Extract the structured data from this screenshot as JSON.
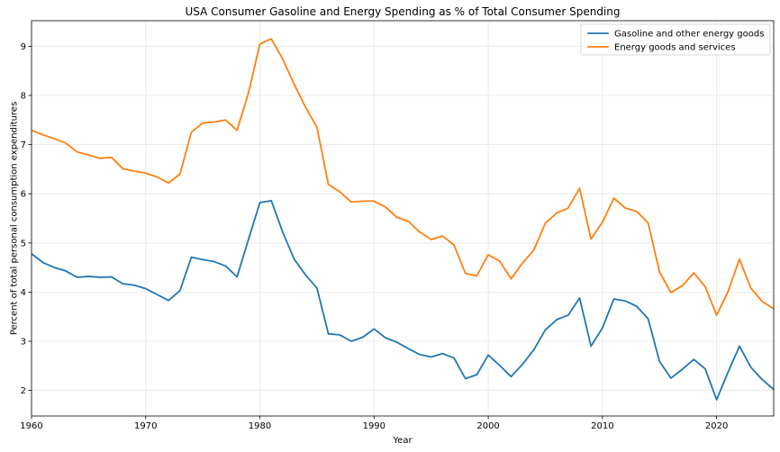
{
  "chart_data": {
    "type": "line",
    "title": "USA Consumer Gasoline and Energy Spending as % of Total Consumer Spending",
    "xlabel": "Year",
    "ylabel": "Percent of total personal consumption expenditures",
    "xlim": [
      1960,
      2025
    ],
    "ylim": [
      1.48,
      9.52
    ],
    "grid": true,
    "legend_position": "top-right",
    "x_ticks": [
      1960,
      1970,
      1980,
      1990,
      2000,
      2010,
      2020
    ],
    "x_tick_labels": [
      "1960",
      "1970",
      "1980",
      "1990",
      "2000",
      "2010",
      "2020"
    ],
    "y_ticks": [
      2,
      3,
      4,
      5,
      6,
      7,
      8,
      9
    ],
    "y_tick_labels": [
      "2",
      "3",
      "4",
      "5",
      "6",
      "7",
      "8",
      "9"
    ],
    "x": [
      1960,
      1961,
      1962,
      1963,
      1964,
      1965,
      1966,
      1967,
      1968,
      1969,
      1970,
      1971,
      1972,
      1973,
      1974,
      1975,
      1976,
      1977,
      1978,
      1979,
      1980,
      1981,
      1982,
      1983,
      1984,
      1985,
      1986,
      1987,
      1988,
      1989,
      1990,
      1991,
      1992,
      1993,
      1994,
      1995,
      1996,
      1997,
      1998,
      1999,
      2000,
      2001,
      2002,
      2003,
      2004,
      2005,
      2006,
      2007,
      2008,
      2009,
      2010,
      2011,
      2012,
      2013,
      2014,
      2015,
      2016,
      2017,
      2018,
      2019,
      2020,
      2021,
      2022,
      2023,
      2024,
      2025
    ],
    "series": [
      {
        "name": "Gasoline and other energy goods",
        "color": "#1f77b4",
        "values": [
          4.78,
          4.6,
          4.5,
          4.43,
          4.3,
          4.32,
          4.3,
          4.31,
          4.17,
          4.14,
          4.07,
          3.95,
          3.83,
          4.03,
          4.71,
          4.66,
          4.62,
          4.53,
          4.31,
          5.07,
          5.82,
          5.86,
          5.22,
          4.67,
          4.35,
          4.08,
          3.15,
          3.13,
          3.0,
          3.08,
          3.25,
          3.07,
          2.98,
          2.85,
          2.73,
          2.68,
          2.75,
          2.66,
          2.24,
          2.32,
          2.72,
          2.51,
          2.28,
          2.53,
          2.83,
          3.23,
          3.44,
          3.53,
          3.88,
          2.9,
          3.27,
          3.86,
          3.82,
          3.71,
          3.46,
          2.59,
          2.25,
          2.43,
          2.63,
          2.44,
          1.81,
          2.37,
          2.9,
          2.47,
          2.22,
          2.02
        ]
      },
      {
        "name": "Energy goods and services",
        "color": "#ff7f0e",
        "values": [
          7.29,
          7.2,
          7.12,
          7.03,
          6.85,
          6.79,
          6.72,
          6.74,
          6.51,
          6.46,
          6.42,
          6.34,
          6.22,
          6.4,
          7.25,
          7.44,
          7.46,
          7.5,
          7.29,
          8.05,
          9.05,
          9.15,
          8.74,
          8.23,
          7.76,
          7.35,
          6.19,
          6.04,
          5.83,
          5.85,
          5.85,
          5.73,
          5.52,
          5.44,
          5.22,
          5.07,
          5.14,
          4.96,
          4.38,
          4.33,
          4.76,
          4.63,
          4.27,
          4.59,
          4.86,
          5.4,
          5.61,
          5.71,
          6.11,
          5.08,
          5.42,
          5.91,
          5.71,
          5.64,
          5.41,
          4.41,
          3.99,
          4.13,
          4.39,
          4.11,
          3.53,
          4.01,
          4.67,
          4.08,
          3.81,
          3.66
        ]
      }
    ]
  }
}
